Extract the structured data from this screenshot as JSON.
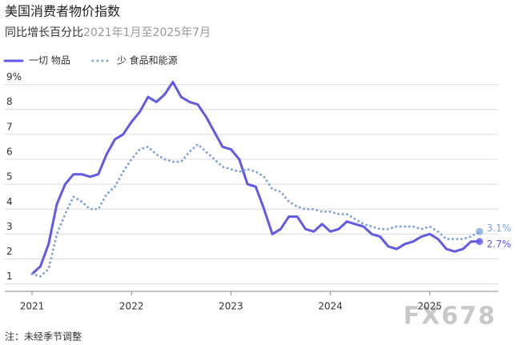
{
  "chart_data": {
    "type": "line",
    "title": "美国消费者物价指数",
    "subtitle": "同比增长百分比",
    "subtitle_range": "2021年1月至2025年7月",
    "note": "注：未经季节调整",
    "watermark": "FX678",
    "categories": [
      "2021",
      null,
      null,
      null,
      null,
      null,
      null,
      null,
      null,
      null,
      null,
      null,
      "2022",
      null,
      null,
      null,
      null,
      null,
      null,
      null,
      null,
      null,
      null,
      null,
      "2023",
      null,
      null,
      null,
      null,
      null,
      null,
      null,
      null,
      null,
      null,
      null,
      "2024",
      null,
      null,
      null,
      null,
      null,
      null,
      null,
      null,
      null,
      null,
      null,
      "2025",
      null,
      null,
      null,
      null,
      null,
      null
    ],
    "series": [
      {
        "name": "一切 物品",
        "color": "#6159e8",
        "style": "solid",
        "end_label": "2.7%",
        "values": [
          1.4,
          1.7,
          2.6,
          4.2,
          5.0,
          5.4,
          5.4,
          5.3,
          5.4,
          6.2,
          6.8,
          7.0,
          7.5,
          7.9,
          8.5,
          8.3,
          8.6,
          9.1,
          8.5,
          8.3,
          8.2,
          7.7,
          7.1,
          6.5,
          6.4,
          6.0,
          5.0,
          4.9,
          4.0,
          3.0,
          3.2,
          3.7,
          3.7,
          3.2,
          3.1,
          3.4,
          3.1,
          3.2,
          3.5,
          3.4,
          3.3,
          3.0,
          2.9,
          2.5,
          2.4,
          2.6,
          2.7,
          2.9,
          3.0,
          2.8,
          2.4,
          2.3,
          2.4,
          2.7,
          2.7
        ]
      },
      {
        "name": "少 食品和能源",
        "color": "#7fa6d8",
        "style": "dotted",
        "end_label": "3.1%",
        "values": [
          1.4,
          1.3,
          1.6,
          3.0,
          3.8,
          4.5,
          4.3,
          4.0,
          4.0,
          4.6,
          4.9,
          5.5,
          6.0,
          6.4,
          6.5,
          6.2,
          6.0,
          5.9,
          5.9,
          6.3,
          6.6,
          6.3,
          6.0,
          5.7,
          5.6,
          5.5,
          5.6,
          5.5,
          5.3,
          4.8,
          4.7,
          4.3,
          4.1,
          4.0,
          4.0,
          3.9,
          3.9,
          3.8,
          3.8,
          3.6,
          3.4,
          3.3,
          3.2,
          3.2,
          3.3,
          3.3,
          3.3,
          3.2,
          3.3,
          3.1,
          2.8,
          2.8,
          2.8,
          2.9,
          3.1
        ]
      }
    ],
    "ylim": [
      0.7,
      9.5
    ],
    "yticks": [
      1,
      2,
      3,
      4,
      5,
      6,
      7,
      8,
      {
        "value": 9,
        "label": "9%"
      }
    ],
    "grid": true
  }
}
